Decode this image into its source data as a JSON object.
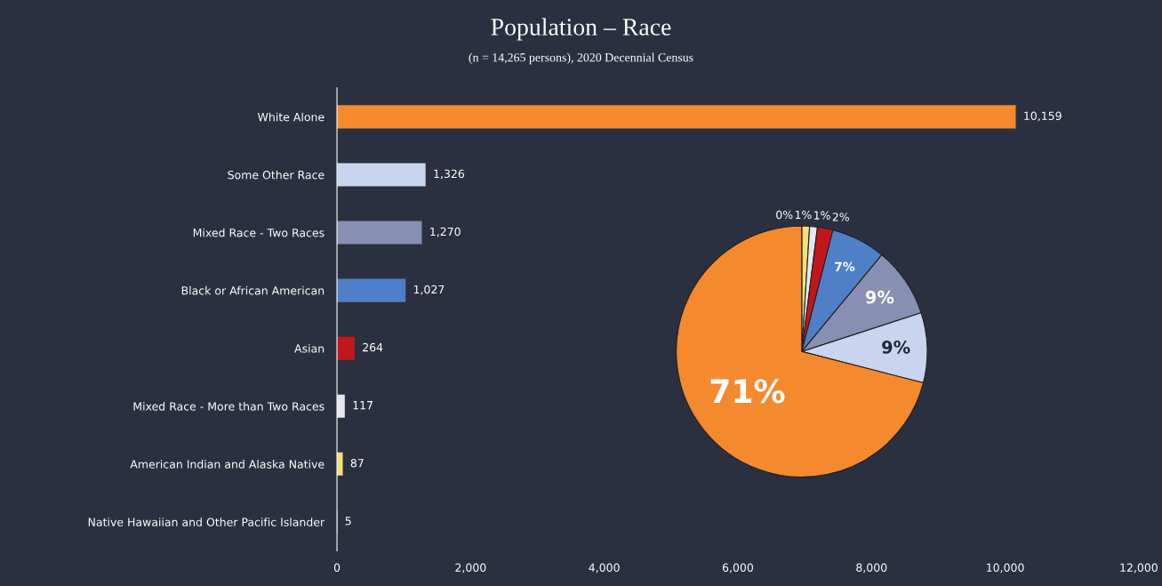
{
  "chart_data": [
    {
      "type": "bar",
      "orientation": "horizontal",
      "title": "Population – Race",
      "subtitle": "(n = 14,265 persons), 2020 Decennial Census",
      "categories": [
        "White Alone",
        "Some Other Race",
        "Mixed Race - Two Races",
        "Black or African American",
        "Asian",
        "Mixed Race - More than Two Races",
        "American Indian and Alaska Native",
        "Native Hawaiian and Other Pacific Islander"
      ],
      "values": [
        10159,
        1326,
        1270,
        1027,
        264,
        117,
        87,
        5
      ],
      "value_labels": [
        "10,159",
        "1,326",
        "1,270",
        "1,027",
        "264",
        "117",
        "87",
        "5"
      ],
      "colors": [
        "#f5892e",
        "#c9d4ef",
        "#878fb3",
        "#4f7fc6",
        "#c3161c",
        "#e6e6ee",
        "#f3e07a",
        "#ffffff"
      ],
      "xlim": [
        0,
        12000
      ],
      "xticks": [
        {
          "value": 0,
          "label": "0"
        },
        {
          "value": 2000,
          "label": "2,000"
        },
        {
          "value": 4000,
          "label": "4,000"
        },
        {
          "value": 6000,
          "label": "6,000"
        },
        {
          "value": 8000,
          "label": "8,000"
        },
        {
          "value": 10000,
          "label": "10,000"
        },
        {
          "value": 12000,
          "label": "12,000"
        }
      ],
      "grid": false,
      "legend": false
    },
    {
      "type": "pie",
      "categories": [
        null,
        null,
        null,
        null,
        null,
        null,
        null,
        null
      ],
      "values": [
        0,
        1,
        1,
        2,
        7,
        9,
        9,
        71
      ],
      "value_labels": [
        "0%",
        "1%",
        "1%",
        "2%",
        "7%",
        "9%",
        "9%",
        "71%"
      ],
      "colors": [
        "#ffffff",
        "#f3e07a",
        "#e6e6ee",
        "#c3161c",
        "#4f7fc6",
        "#878fb3",
        "#c9d4ef",
        "#f5892e"
      ],
      "legend": false
    }
  ]
}
